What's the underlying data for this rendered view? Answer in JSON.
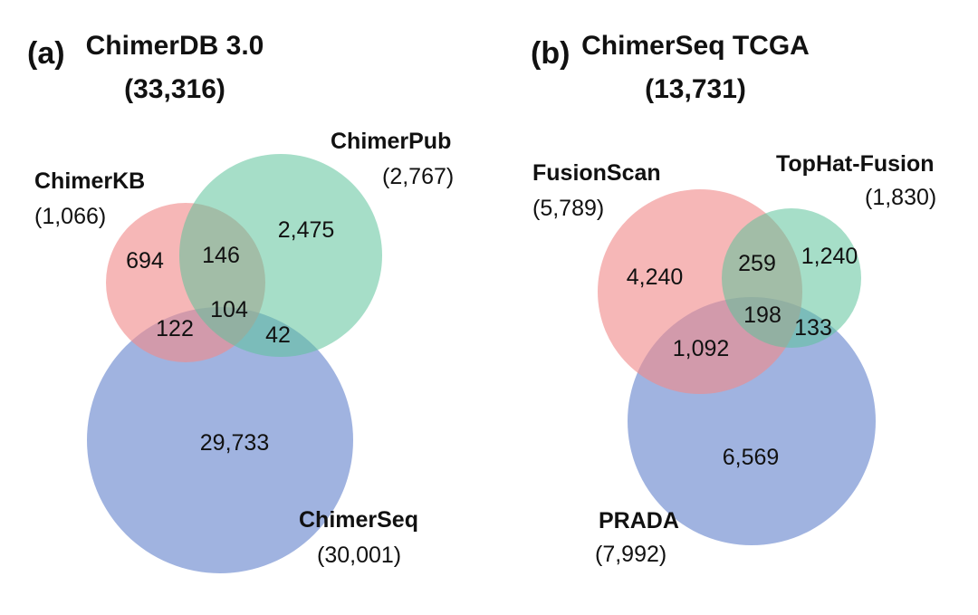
{
  "panels": [
    {
      "label": "(a)",
      "title": "ChimerDB 3.0",
      "total": "(33,316)",
      "sets": [
        {
          "name": "ChimerKB",
          "total": "(1,066)",
          "color": "#f08a8a"
        },
        {
          "name": "ChimerPub",
          "total": "(2,767)",
          "color": "#5cc39a"
        },
        {
          "name": "ChimerSeq",
          "total": "(30,001)",
          "color": "#7b96d4"
        }
      ],
      "regions": {
        "only_1": "694",
        "only_2": "2,475",
        "only_3": "29,733",
        "r12": "146",
        "r13": "122",
        "r23": "42",
        "r123": "104"
      }
    },
    {
      "label": "(b)",
      "title": "ChimerSeq TCGA",
      "total": "(13,731)",
      "sets": [
        {
          "name": "FusionScan",
          "total": "(5,789)",
          "color": "#f08a8a"
        },
        {
          "name": "TopHat-Fusion",
          "total": "(1,830)",
          "color": "#5cc39a"
        },
        {
          "name": "PRADA",
          "total": "(7,992)",
          "color": "#7b96d4"
        }
      ],
      "regions": {
        "only_1": "4,240",
        "only_2": "1,240",
        "only_3": "6,569",
        "r12": "259",
        "r13": "1,092",
        "r23": "133",
        "r123": "198"
      }
    }
  ]
}
